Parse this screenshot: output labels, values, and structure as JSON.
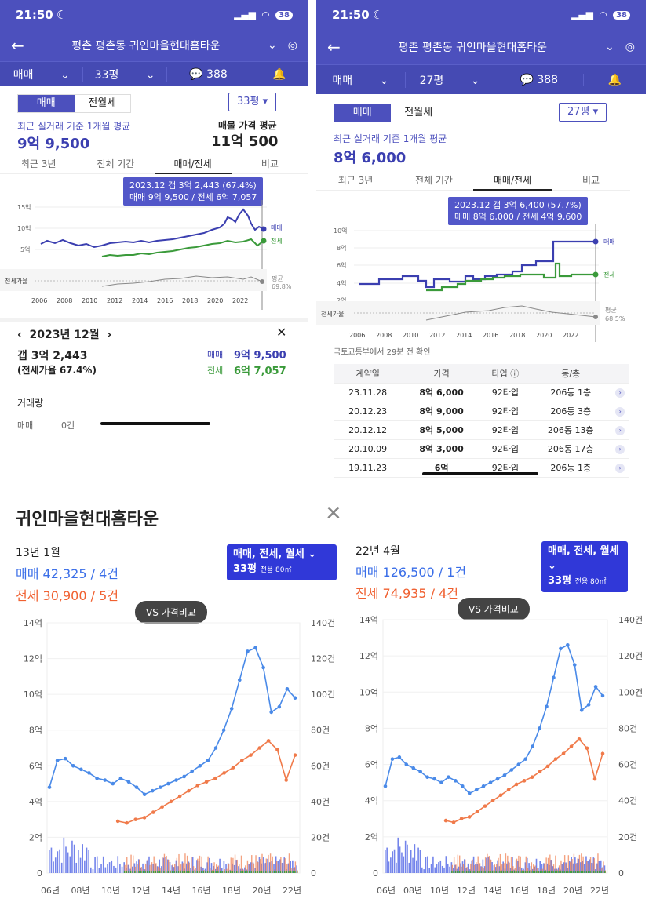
{
  "status": {
    "time": "21:50",
    "battery": "38"
  },
  "left_phone": {
    "title": "평촌 평촌동 귀인마을현대홈타운",
    "tabs": [
      "매매",
      "33평",
      "388"
    ],
    "seg": [
      "매매",
      "전월세"
    ],
    "size": "33평",
    "avg_label": "최근 실거래 기준 1개월 평균",
    "avg_value": "9억 9,500",
    "list_label": "매물 가격 평균",
    "list_value": "11억 500",
    "period_tabs": [
      "최근 3년",
      "전체 기간",
      "매매/전세",
      "비교"
    ],
    "tooltip1": "2023.12  갭 3억 2,443 (67.4%)",
    "tooltip2": "매매 9억 9,500 / 전세 6억 7,057",
    "yticks": [
      "15억",
      "10억",
      "5억"
    ],
    "ratio_label": "전세가율",
    "avg_tag": "평균",
    "avg_pct": "69.8%",
    "series_labels": [
      "매매",
      "전세"
    ],
    "xticks": [
      "2006",
      "2008",
      "2010",
      "2012",
      "2014",
      "2016",
      "2018",
      "2020",
      "2022"
    ],
    "month": "2023년 12월",
    "gap": "갭 3억 2,443",
    "gap_ratio": "(전세가율 67.4%)",
    "sale_label": "매매",
    "sale_val": "9억 9,500",
    "jeonse_label": "전세",
    "jeonse_val": "6억 7,057",
    "volume_title": "거래량",
    "volume_label": "매매",
    "volume_val": "0건"
  },
  "right_phone": {
    "title": "평촌 평촌동 귀인마을현대홈타운",
    "tabs": [
      "매매",
      "27평",
      "388"
    ],
    "seg": [
      "매매",
      "전월세"
    ],
    "size": "27평",
    "avg_label": "최근 실거래 기준 1개월 평균",
    "avg_value": "8억 6,000",
    "period_tabs": [
      "최근 3년",
      "전체 기간",
      "매매/전세",
      "비교"
    ],
    "tooltip1": "2023.12  갭 3억 6,400 (57.7%)",
    "tooltip2": "매매 8억 6,000 / 전세 4억 9,600",
    "yticks": [
      "10억",
      "8억",
      "6억",
      "4억",
      "2억"
    ],
    "ratio_label": "전세가율",
    "avg_tag": "평균",
    "avg_pct": "68.5%",
    "series_labels": [
      "매매",
      "전세"
    ],
    "xticks": [
      "2006",
      "2008",
      "2010",
      "2012",
      "2014",
      "2016",
      "2018",
      "2020",
      "2022"
    ],
    "source": "국토교통부에서 29분 전 확인",
    "headers": [
      "계약일",
      "가격",
      "타입",
      "동/층"
    ],
    "rows": [
      [
        "23.11.28",
        "8억 6,000",
        "92타입",
        "206동 1층"
      ],
      [
        "20.12.23",
        "8억 9,000",
        "92타입",
        "206동 3층"
      ],
      [
        "20.12.12",
        "8억 5,000",
        "92타입",
        "206동 13층"
      ],
      [
        "20.10.09",
        "8억 3,000",
        "92타입",
        "206동 17층"
      ],
      [
        "19.11.23",
        "6억",
        "92타입",
        "206동 1층"
      ]
    ]
  },
  "bottom": {
    "title": "귀인마을현대홈타운",
    "left": {
      "period": "13년 1월",
      "sale": "매매 42,325 / 4건",
      "jeonse": "전세 30,900 / 5건"
    },
    "right": {
      "period": "22년 4월",
      "sale": "매매 126,500 / 1건",
      "jeonse": "전세 74,935 / 4건"
    },
    "filter": "매매, 전세, 월세",
    "size": "33평",
    "area": "전용 80㎡",
    "vs": "VS 가격비교",
    "yticks_left": [
      "14억",
      "12억",
      "10억",
      "8억",
      "6억",
      "4억",
      "2억",
      "0"
    ],
    "yticks_right": [
      "140건",
      "120건",
      "100건",
      "80건",
      "60건",
      "40건",
      "20건",
      "0"
    ],
    "xticks": [
      "06년",
      "08년",
      "10년",
      "12년",
      "14년",
      "16년",
      "18년",
      "20년",
      "22년"
    ]
  },
  "colors": {
    "accent": "#4c50bd",
    "sale": "#4a8ae8",
    "jeonse": "#f07a4a",
    "green": "#3a9a3a"
  }
}
